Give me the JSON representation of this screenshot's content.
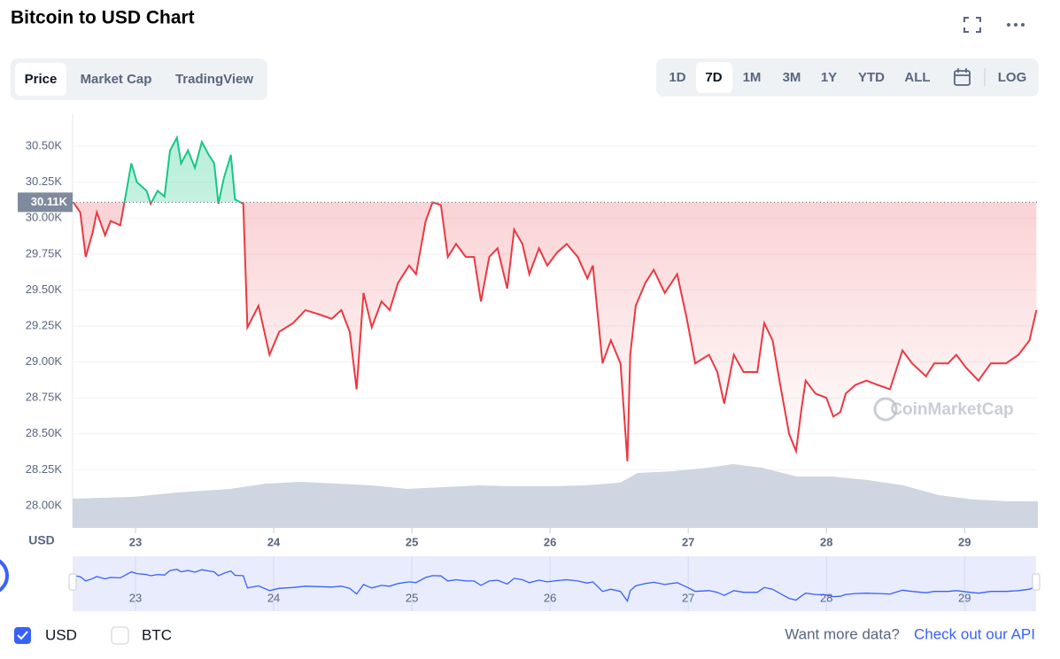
{
  "ui": {
    "title": "Bitcoin to USD Chart",
    "tabs": [
      "Price",
      "Market Cap",
      "TradingView"
    ],
    "ranges": [
      "1D",
      "7D",
      "1M",
      "3M",
      "1Y",
      "YTD",
      "ALL"
    ],
    "log": "LOG",
    "watermark": "CoinMarketCap",
    "legend": [
      "USD",
      "BTC"
    ],
    "more": "Want more data?",
    "api": "Check out our API"
  },
  "chart_data": {
    "type": "line",
    "y_axis_label": "USD",
    "x": [
      22.55,
      22.6,
      22.64,
      22.69,
      22.72,
      22.78,
      22.82,
      22.89,
      22.92,
      22.97,
      23.01,
      23.08,
      23.11,
      23.16,
      23.21,
      23.25,
      23.3,
      23.33,
      23.38,
      23.43,
      23.48,
      23.53,
      23.57,
      23.6,
      23.64,
      23.69,
      23.72,
      23.78,
      23.81,
      23.89,
      23.97,
      24.04,
      24.14,
      24.23,
      24.33,
      24.42,
      24.49,
      24.55,
      24.6,
      24.65,
      24.71,
      24.78,
      24.84,
      24.9,
      24.98,
      25.03,
      25.1,
      25.15,
      25.21,
      25.26,
      25.32,
      25.39,
      25.45,
      25.5,
      25.56,
      25.62,
      25.69,
      25.74,
      25.8,
      25.85,
      25.92,
      25.98,
      26.05,
      26.12,
      26.2,
      26.27,
      26.31,
      26.38,
      26.44,
      26.51,
      26.56,
      26.58,
      26.62,
      26.69,
      26.75,
      26.83,
      26.92,
      26.99,
      27.05,
      27.15,
      27.21,
      27.26,
      27.33,
      27.4,
      27.5,
      27.55,
      27.61,
      27.66,
      27.73,
      27.78,
      27.82,
      27.85,
      27.92,
      28.0,
      28.05,
      28.1,
      28.14,
      28.21,
      28.29,
      28.37,
      28.46,
      28.55,
      28.62,
      28.72,
      28.78,
      28.88,
      28.94,
      29.01,
      29.1,
      29.19,
      29.3,
      29.39,
      29.47,
      29.52
    ],
    "values": [
      30110,
      30040,
      29730,
      29900,
      30040,
      29880,
      29980,
      29950,
      30110,
      30380,
      30250,
      30190,
      30100,
      30190,
      30150,
      30470,
      30560,
      30380,
      30470,
      30350,
      30530,
      30440,
      30380,
      30100,
      30280,
      30440,
      30130,
      30100,
      29240,
      29390,
      29050,
      29210,
      29270,
      29360,
      29330,
      29300,
      29360,
      29210,
      28810,
      29480,
      29240,
      29420,
      29360,
      29550,
      29670,
      29610,
      29980,
      30110,
      30090,
      29730,
      29820,
      29730,
      29730,
      29420,
      29730,
      29790,
      29510,
      29920,
      29820,
      29610,
      29790,
      29670,
      29760,
      29820,
      29730,
      29580,
      29670,
      28990,
      29150,
      28990,
      28310,
      29050,
      29390,
      29550,
      29640,
      29480,
      29610,
      29300,
      28990,
      29050,
      28930,
      28710,
      29050,
      28930,
      28930,
      29270,
      29150,
      28870,
      28500,
      28380,
      28680,
      28870,
      28780,
      28750,
      28620,
      28650,
      28780,
      28840,
      28870,
      28840,
      28810,
      29080,
      28990,
      28900,
      28990,
      28990,
      29050,
      28960,
      28870,
      28990,
      28990,
      29050,
      29150,
      29360
    ],
    "up_color": "#16c784",
    "down_color": "#ea3943",
    "reference": {
      "value": 30110,
      "label": "30.11K"
    },
    "xlim": [
      22.545,
      29.53
    ],
    "xticks": [
      23,
      24,
      25,
      26,
      27,
      28,
      29
    ],
    "ylim": [
      27846,
      30728
    ],
    "yticks": [
      {
        "value": 28000,
        "label": "28.00K"
      },
      {
        "value": 28250,
        "label": "28.25K"
      },
      {
        "value": 28500,
        "label": "28.50K"
      },
      {
        "value": 28750,
        "label": "28.75K"
      },
      {
        "value": 29000,
        "label": "29.00K"
      },
      {
        "value": 29250,
        "label": "29.25K"
      },
      {
        "value": 29500,
        "label": "29.50K"
      },
      {
        "value": 29750,
        "label": "29.75K"
      },
      {
        "value": 30000,
        "label": "30.00K"
      },
      {
        "value": 30250,
        "label": "30.25K"
      },
      {
        "value": 30500,
        "label": "30.50K"
      }
    ],
    "grid": true
  }
}
